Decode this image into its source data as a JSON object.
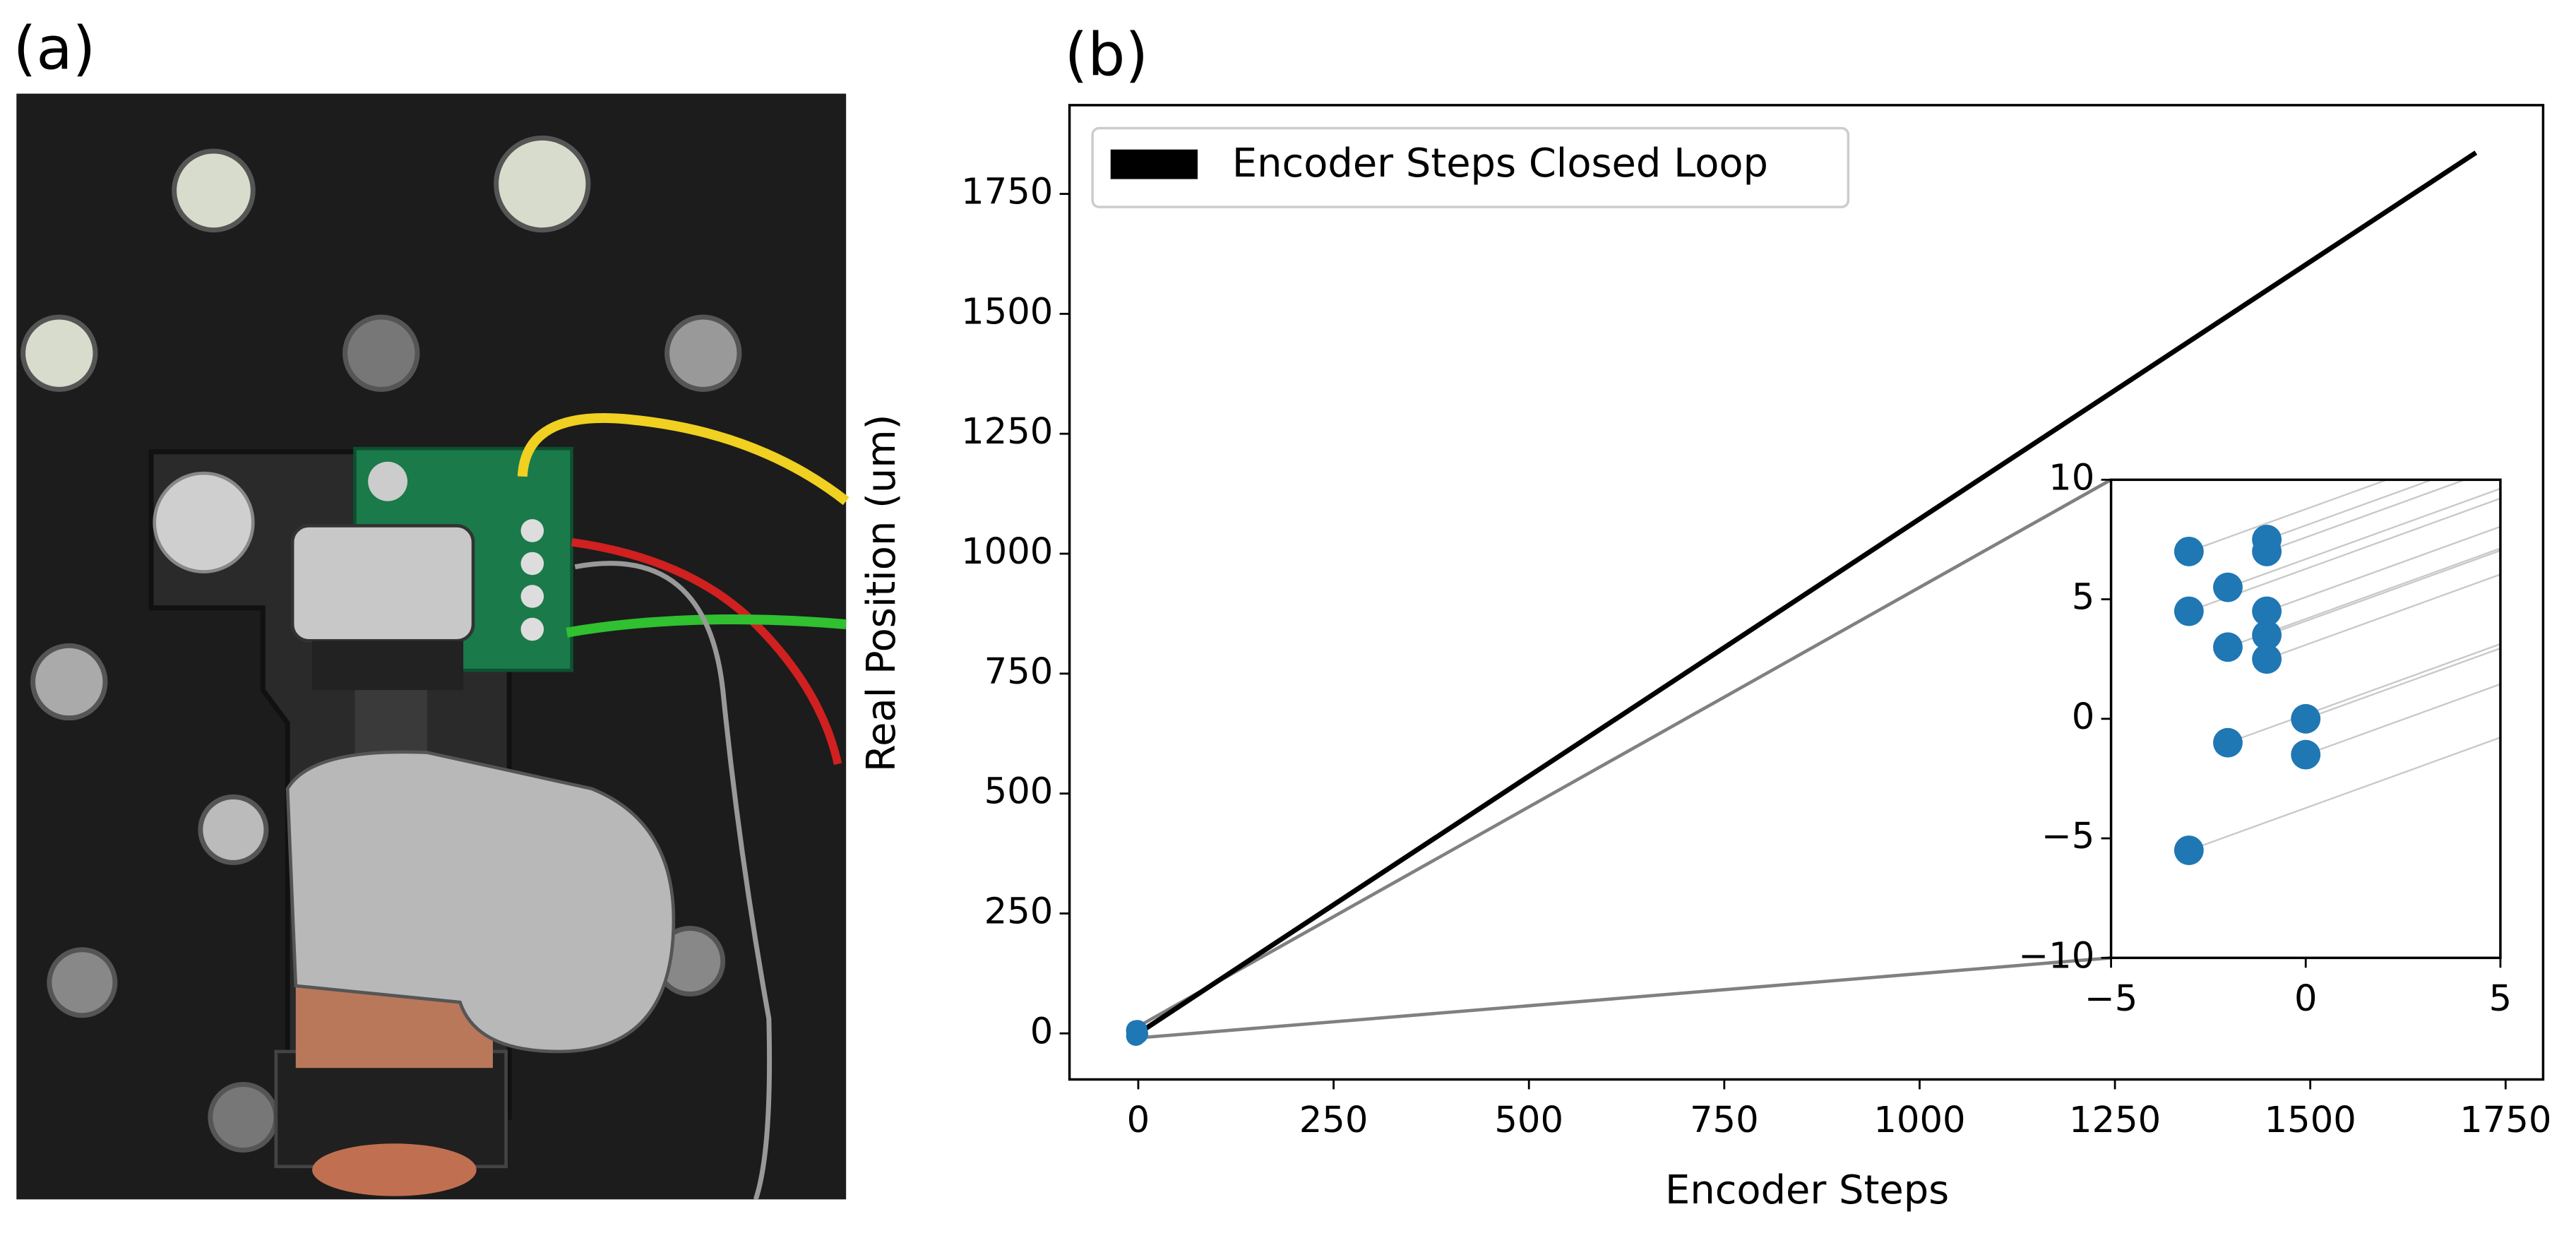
{
  "panel_labels": [
    "(a)",
    "(b)"
  ],
  "chart_data": {
    "type": "line",
    "xlabel": "Encoder Steps",
    "ylabel": "Real Position (um)",
    "xlim": [
      -88,
      1798
    ],
    "ylim": [
      -96,
      1935
    ],
    "xticks": [
      0,
      250,
      500,
      750,
      1000,
      1250,
      1500,
      1750
    ],
    "yticks": [
      0,
      250,
      500,
      750,
      1000,
      1250,
      1500,
      1750
    ],
    "legend": "upper left",
    "series": [
      {
        "name": "Encoder Steps Closed Loop",
        "color": "#000000",
        "x": [
          0,
          1712
        ],
        "values": [
          0,
          1836
        ]
      }
    ],
    "inset": {
      "type": "scatter",
      "color": "#1f77b4",
      "xlim": [
        -5,
        5
      ],
      "ylim": [
        -10,
        10
      ],
      "xticks": [
        {
          "value": -5,
          "label": "−5"
        },
        0,
        5
      ],
      "yticks": [
        {
          "value": -10,
          "label": "−10"
        },
        {
          "value": -5,
          "label": "−5"
        },
        0,
        5,
        10
      ],
      "x": [
        -3,
        -3,
        -3,
        -2,
        -2,
        -2,
        -1,
        -1,
        -1,
        -1,
        -1,
        0,
        0
      ],
      "values": [
        7,
        4.5,
        -5.5,
        5.5,
        3,
        -1,
        7.5,
        7,
        4.5,
        3.5,
        2.5,
        0,
        -1.5
      ]
    }
  }
}
